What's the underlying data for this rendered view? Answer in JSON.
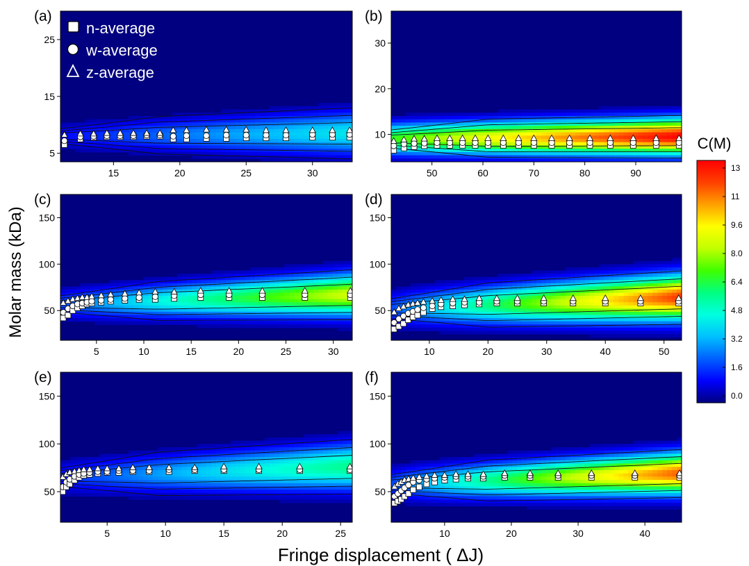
{
  "figure": {
    "ylabel": "Molar mass (kDa)",
    "xlabel": "Fringe displacement ( ΔJ)",
    "legend": [
      {
        "marker": "square",
        "label": "n-average"
      },
      {
        "marker": "circle",
        "label": "w-average"
      },
      {
        "marker": "triangle",
        "label": "z-average"
      }
    ],
    "colorbar": {
      "title": "C(M)",
      "ticks": [
        "13",
        "11",
        "9.6",
        "8.0",
        "6.4",
        "4.8",
        "3.2",
        "1.6",
        "0.0"
      ],
      "range": [
        0,
        13.5
      ],
      "stops": [
        "#000080",
        "#0000ff",
        "#0060ff",
        "#00c0ff",
        "#00ffe0",
        "#00ff80",
        "#40ff00",
        "#c0ff00",
        "#ffff00",
        "#ffa000",
        "#ff4000",
        "#ff0000"
      ]
    }
  },
  "chart_data": [
    {
      "type": "heatmap",
      "label": "(a)",
      "xlim": [
        11,
        33
      ],
      "ylim": [
        3.5,
        30
      ],
      "xticks": [
        15,
        20,
        25,
        30
      ],
      "yticks": [
        5,
        15,
        25
      ],
      "band": {
        "center_start": 8,
        "center_end": 8.5,
        "width_start": 1.5,
        "width_end": 2.5,
        "peak_start": 1.2,
        "peak_end": 4.5
      },
      "x": [
        11.3,
        12.5,
        13.5,
        14.5,
        15.5,
        16.5,
        17.5,
        18.5,
        19.5,
        20.5,
        22,
        23.5,
        25,
        26.5,
        28,
        30,
        31.5,
        32.8
      ],
      "n_avg": [
        6.5,
        7.5,
        7.8,
        7.9,
        7.9,
        7.9,
        8.0,
        8.0,
        7.5,
        7.5,
        7.6,
        7.6,
        7.7,
        7.7,
        7.7,
        7.8,
        7.8,
        7.8
      ],
      "w_avg": [
        7.2,
        7.9,
        8.0,
        8.1,
        8.1,
        8.1,
        8.2,
        8.2,
        8.0,
        8.1,
        8.1,
        8.2,
        8.2,
        8.2,
        8.2,
        8.3,
        8.3,
        8.3
      ],
      "z_avg": [
        8.2,
        8.4,
        8.4,
        8.5,
        8.5,
        8.5,
        8.5,
        8.5,
        9.0,
        9.0,
        9.1,
        9.1,
        9.1,
        9.0,
        9.0,
        9.0,
        9.0,
        9.0
      ]
    },
    {
      "type": "heatmap",
      "label": "(b)",
      "xlim": [
        42,
        99
      ],
      "ylim": [
        4,
        37
      ],
      "xticks": [
        50,
        60,
        70,
        80,
        90
      ],
      "yticks": [
        10,
        20,
        30
      ],
      "band": {
        "center_start": 9,
        "center_end": 9.5,
        "width_start": 2.2,
        "width_end": 2.6,
        "peak_start": 7,
        "peak_end": 13.5
      },
      "x": [
        42.5,
        44.5,
        46.5,
        48.5,
        51,
        53.5,
        56,
        58.5,
        61,
        64,
        67,
        70,
        73.5,
        77,
        81,
        85,
        89.5,
        94,
        98.5
      ],
      "n_avg": [
        6.5,
        7.0,
        7.3,
        7.5,
        7.6,
        7.6,
        7.6,
        7.6,
        7.6,
        7.6,
        7.6,
        7.6,
        7.6,
        7.6,
        7.6,
        7.6,
        7.6,
        7.6,
        7.6
      ],
      "w_avg": [
        7.5,
        7.9,
        8.0,
        8.1,
        8.2,
        8.2,
        8.2,
        8.2,
        8.2,
        8.2,
        8.2,
        8.2,
        8.2,
        8.2,
        8.2,
        8.2,
        8.2,
        8.2,
        8.2
      ],
      "z_avg": [
        8.5,
        8.8,
        9.0,
        9.0,
        9.1,
        9.1,
        9.1,
        9.1,
        9.1,
        9.1,
        9.1,
        9.1,
        9.1,
        9.1,
        9.1,
        9.1,
        9.1,
        9.1,
        9.1
      ]
    },
    {
      "type": "heatmap",
      "label": "(c)",
      "xlim": [
        1.2,
        32
      ],
      "ylim": [
        18,
        175
      ],
      "xticks": [
        5,
        10,
        15,
        20,
        25,
        30
      ],
      "yticks": [
        50,
        100,
        150
      ],
      "band": {
        "center_start": 57,
        "center_end": 67,
        "width_start": 10,
        "width_end": 15,
        "peak_start": 2,
        "peak_end": 9
      },
      "x": [
        1.5,
        2.0,
        2.5,
        3.0,
        3.5,
        4.0,
        4.5,
        5.5,
        6.5,
        8.0,
        9.5,
        11.2,
        13.2,
        16,
        19,
        22.5,
        27,
        31.8
      ],
      "n_avg": [
        42,
        45,
        50,
        53,
        55,
        57,
        58,
        59,
        60,
        61,
        62,
        62,
        63,
        64,
        64,
        64,
        64,
        64
      ],
      "w_avg": [
        48,
        52,
        55,
        57,
        58,
        59,
        60,
        61,
        62,
        63,
        64,
        65,
        66,
        67,
        67,
        67,
        67,
        67
      ],
      "z_avg": [
        58,
        60,
        62,
        63,
        64,
        64,
        65,
        66,
        67,
        68,
        69,
        70,
        70,
        71,
        71,
        71,
        71,
        71
      ]
    },
    {
      "type": "heatmap",
      "label": "(d)",
      "xlim": [
        3.5,
        53
      ],
      "ylim": [
        18,
        175
      ],
      "xticks": [
        10,
        20,
        30,
        40,
        50
      ],
      "yticks": [
        50,
        100,
        150
      ],
      "band": {
        "center_start": 52,
        "center_end": 64,
        "width_start": 12,
        "width_end": 16,
        "peak_start": 2,
        "peak_end": 12.5
      },
      "x": [
        4.0,
        4.8,
        5.6,
        6.4,
        7.2,
        8.0,
        9.0,
        10.5,
        12,
        14,
        16,
        18.5,
        21.5,
        25,
        29.5,
        34.5,
        40,
        46,
        52.5
      ],
      "n_avg": [
        30,
        33,
        36,
        40,
        43,
        45,
        48,
        52,
        54,
        55,
        56,
        57,
        58,
        58,
        58,
        58,
        58,
        58,
        58
      ],
      "w_avg": [
        37,
        41,
        44,
        47,
        49,
        51,
        53,
        55,
        57,
        58,
        59,
        59,
        60,
        60,
        60,
        60,
        60,
        60,
        60
      ],
      "z_avg": [
        48,
        52,
        54,
        56,
        57,
        58,
        59,
        60,
        61,
        62,
        62,
        63,
        63,
        63,
        63,
        63,
        63,
        63,
        63
      ]
    },
    {
      "type": "heatmap",
      "label": "(e)",
      "xlim": [
        1,
        26
      ],
      "ylim": [
        18,
        175
      ],
      "xticks": [
        5,
        10,
        15,
        20,
        25
      ],
      "yticks": [
        50,
        100,
        150
      ],
      "band": {
        "center_start": 65,
        "center_end": 76,
        "width_start": 11,
        "width_end": 16,
        "peak_start": 1.5,
        "peak_end": 6
      },
      "x": [
        1.2,
        1.5,
        1.8,
        2.2,
        2.6,
        3.0,
        3.5,
        4.2,
        5.0,
        6.0,
        7.2,
        8.6,
        10.3,
        12.5,
        15,
        18,
        21.5,
        25.8
      ],
      "n_avg": [
        50,
        55,
        58,
        62,
        65,
        67,
        68,
        69,
        70,
        70,
        71,
        71,
        71,
        72,
        72,
        72,
        72,
        72
      ],
      "w_avg": [
        55,
        60,
        63,
        66,
        68,
        69,
        70,
        71,
        71,
        72,
        72,
        72,
        73,
        73,
        73,
        73,
        73,
        73
      ],
      "z_avg": [
        65,
        68,
        70,
        71,
        72,
        73,
        73,
        74,
        74,
        74,
        75,
        75,
        75,
        75,
        76,
        76,
        76,
        76
      ]
    },
    {
      "type": "heatmap",
      "label": "(f)",
      "xlim": [
        2,
        45.5
      ],
      "ylim": [
        18,
        175
      ],
      "xticks": [
        10,
        20,
        30,
        40
      ],
      "yticks": [
        50,
        100,
        150
      ],
      "band": {
        "center_start": 58,
        "center_end": 69,
        "width_start": 11,
        "width_end": 14,
        "peak_start": 2,
        "peak_end": 12
      },
      "x": [
        2.5,
        3.0,
        3.5,
        4.0,
        4.6,
        5.3,
        6.2,
        7.3,
        8.5,
        10,
        11.7,
        13.5,
        15.8,
        19,
        22.8,
        27,
        32,
        38.5,
        45.2
      ],
      "n_avg": [
        38,
        40,
        42,
        45,
        48,
        52,
        55,
        58,
        60,
        62,
        63,
        64,
        64,
        65,
        65,
        65,
        65,
        65,
        65
      ],
      "w_avg": [
        45,
        48,
        51,
        54,
        57,
        60,
        62,
        63,
        64,
        65,
        66,
        66,
        66,
        67,
        67,
        67,
        67,
        67,
        67
      ],
      "z_avg": [
        55,
        58,
        60,
        62,
        63,
        64,
        65,
        66,
        67,
        67,
        68,
        68,
        68,
        69,
        69,
        69,
        69,
        69,
        69
      ]
    }
  ]
}
